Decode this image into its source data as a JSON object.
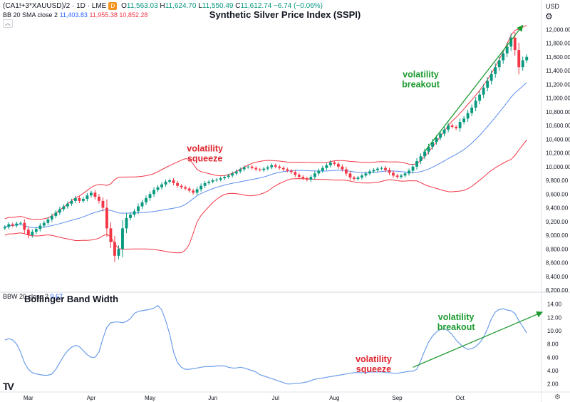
{
  "legend": {
    "symbol": "(CA1!+3*XAUUSD)/2 · 1D · LME",
    "flag": "D",
    "o_label": "O",
    "o_value": "11,563.03",
    "h_label": "H",
    "h_value": "11,624.70",
    "l_label": "L",
    "l_value": "11,550.49",
    "c_label": "C",
    "c_value": "11,612.74",
    "change": "−6.74 (−0.06%)",
    "bb_label": "BB 20 SMA close 2",
    "bb_basis": "11,403.83",
    "bb_upper": "11,955.38",
    "bb_lower": "10,852.28",
    "bbw_label": "BBW 20 close 2",
    "bbw_value": "9.67"
  },
  "ui": {
    "currency": "USD",
    "collapse_icon": "chevron-up-icon",
    "settings_icon": "gear-icon",
    "logo": "TV"
  },
  "colors": {
    "up": "#089981",
    "down": "#f23645",
    "bb_band": "#f23645",
    "bb_basis": "#5b8def",
    "bbw_line": "#6c9ee8",
    "annotation_red": "#e0242e",
    "annotation_green": "#1e9b30"
  },
  "chart_data": [
    {
      "type": "candlestick",
      "title": "Synthetic Silver Price Index (SSPI)",
      "ylim": [
        8200,
        12200
      ],
      "y_ticks": [
        "12,000.00",
        "11,800.00",
        "11,600.00",
        "11,400.00",
        "11,200.00",
        "11,000.00",
        "10,800.00",
        "10,600.00",
        "10,400.00",
        "10,200.00",
        "10,000.00",
        "9,800.00",
        "9,600.00",
        "9,400.00",
        "9,200.00",
        "9,000.00",
        "8,800.00",
        "8,600.00",
        "8,400.00",
        "8,200.00"
      ],
      "x_ticks": [
        "Mar",
        "Apr",
        "May",
        "Jun",
        "Jul",
        "Aug",
        "Sep",
        "Oct"
      ],
      "close": [
        9120,
        9160,
        9140,
        9170,
        9180,
        9080,
        9000,
        9050,
        9090,
        9140,
        9180,
        9230,
        9280,
        9330,
        9380,
        9420,
        9460,
        9500,
        9540,
        9500,
        9530,
        9580,
        9620,
        9560,
        9500,
        9400,
        9100,
        8900,
        8700,
        8800,
        9100,
        9250,
        9300,
        9350,
        9420,
        9480,
        9540,
        9600,
        9660,
        9700,
        9740,
        9780,
        9800,
        9760,
        9720,
        9700,
        9680,
        9650,
        9620,
        9670,
        9720,
        9760,
        9780,
        9800,
        9810,
        9830,
        9850,
        9870,
        9900,
        9930,
        9960,
        9990,
        10000,
        9980,
        9960,
        9950,
        9970,
        9990,
        10020,
        10000,
        9980,
        9960,
        9940,
        9920,
        9880,
        9850,
        9830,
        9810,
        9850,
        9900,
        9940,
        9980,
        10020,
        10060,
        10040,
        10000,
        9960,
        9900,
        9840,
        9820,
        9840,
        9870,
        9900,
        9930,
        9950,
        9970,
        9980,
        9950,
        9910,
        9870,
        9850,
        9870,
        9900,
        9940,
        10000,
        10080,
        10150,
        10220,
        10290,
        10360,
        10420,
        10480,
        10540,
        10600,
        10580,
        10560,
        10650,
        10700,
        10780,
        10860,
        10960,
        11050,
        11150,
        11250,
        11350,
        11450,
        11550,
        11650,
        11750,
        11880,
        11700,
        11450,
        11550,
        11600
      ],
      "series": [
        {
          "name": "BB 20 SMA close 2",
          "role": "basis"
        },
        {
          "name": "BB 20 SMA close 2",
          "role": "upper"
        },
        {
          "name": "BB 20 SMA close 2",
          "role": "lower"
        }
      ],
      "annotations": [
        {
          "text": [
            "volatility",
            "squeeze"
          ],
          "color": "red",
          "x": 51,
          "y": 10220
        },
        {
          "text": [
            "volatility",
            "breakout"
          ],
          "color": "green",
          "x": 106,
          "y": 11300
        }
      ],
      "arrow": {
        "from": [
          107,
          10220
        ],
        "to": [
          132,
          12060
        ]
      }
    },
    {
      "type": "line",
      "title": "Bollinger Band Width",
      "ylim": [
        1,
        14.6
      ],
      "y_ticks": [
        "14.00",
        "12.00",
        "10.00",
        "8.00",
        "6.00",
        "4.00",
        "2.00"
      ],
      "series": [
        {
          "name": "BBW 20 close 2",
          "values": [
            8.6,
            8.8,
            8.6,
            8.0,
            6.8,
            5.2,
            4.2,
            3.7,
            3.5,
            3.4,
            3.3,
            3.3,
            3.5,
            4.2,
            5.2,
            6.2,
            7.0,
            7.5,
            7.8,
            7.6,
            7.0,
            6.4,
            6.0,
            6.0,
            6.8,
            8.8,
            10.5,
            11.2,
            11.3,
            11.3,
            11.2,
            11.4,
            11.8,
            12.6,
            12.9,
            13.0,
            13.1,
            13.2,
            13.4,
            13.8,
            13.1,
            11.5,
            9.5,
            6.8,
            5.2,
            4.5,
            4.2,
            4.2,
            4.3,
            4.4,
            4.5,
            4.6,
            4.6,
            4.6,
            4.7,
            4.7,
            4.7,
            4.5,
            4.4,
            4.4,
            4.5,
            4.4,
            4.2,
            4.0,
            3.8,
            3.4,
            3.2,
            3.0,
            2.8,
            2.6,
            2.4,
            2.2,
            2.0,
            2.0,
            2.1,
            2.1,
            2.2,
            2.3,
            2.5,
            2.7,
            2.8,
            2.9,
            3.0,
            3.1,
            3.2,
            3.3,
            3.4,
            3.5,
            3.6,
            3.7,
            3.7,
            3.7,
            3.7,
            3.8,
            3.8,
            3.8,
            3.8,
            3.7,
            3.7,
            3.6,
            3.6,
            3.7,
            3.8,
            3.9,
            3.9,
            4.2,
            5.5,
            7.0,
            8.3,
            9.2,
            9.8,
            10.2,
            10.3,
            10.0,
            9.4,
            8.6,
            8.0,
            7.5,
            7.2,
            7.3,
            7.6,
            8.2,
            9.0,
            10.3,
            11.8,
            12.8,
            13.2,
            13.3,
            13.1,
            13.0,
            12.6,
            11.5,
            10.6,
            9.67
          ]
        }
      ],
      "annotations": [
        {
          "text": [
            "volatility",
            "squeeze"
          ],
          "color": "red",
          "x": 94,
          "y": 5.3
        },
        {
          "text": [
            "volatility",
            "breakout"
          ],
          "color": "green",
          "x": 115,
          "y": 11.6
        }
      ],
      "arrow": {
        "from": [
          104,
          4.5
        ],
        "to": [
          137,
          12.8
        ]
      }
    }
  ]
}
